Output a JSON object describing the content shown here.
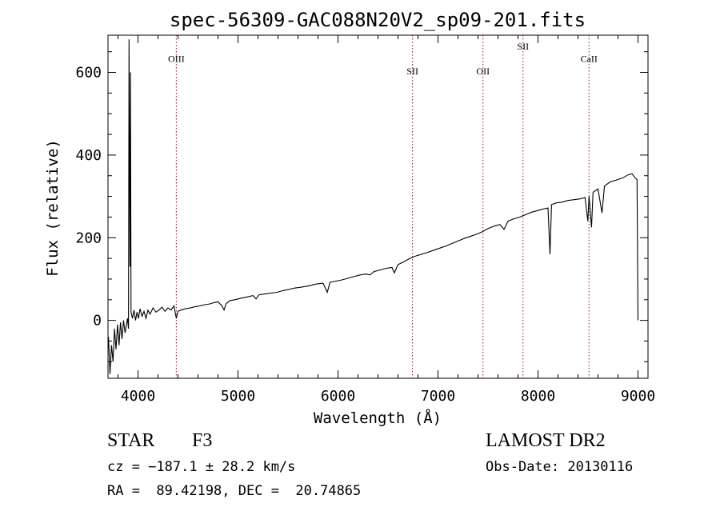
{
  "chart_data": {
    "type": "line",
    "title": "spec-56309-GAC088N20V2_sp09-201.fits",
    "xlabel": "Wavelength (Å)",
    "ylabel": "Flux (relative)",
    "xlim": [
      3700,
      9100
    ],
    "ylim": [
      -140,
      690
    ],
    "xticks": [
      4000,
      5000,
      6000,
      7000,
      8000,
      9000
    ],
    "yticks": [
      0,
      200,
      400,
      600
    ],
    "grid": false,
    "colors": {
      "spectrum": "#000000",
      "lines": "#8b1a1a",
      "axes": "#000000"
    },
    "lines": [
      {
        "name": "OIII",
        "x": 4383,
        "label_y": 625
      },
      {
        "name": "SII",
        "x": 6745,
        "label_y": 595
      },
      {
        "name": "OII",
        "x": 7450,
        "label_y": 595
      },
      {
        "name": "SII",
        "x": 7850,
        "label_y": 655
      },
      {
        "name": "CaII",
        "x": 8510,
        "label_y": 625
      }
    ],
    "spectrum": [
      [
        3705,
        -40
      ],
      [
        3720,
        -130
      ],
      [
        3735,
        -60
      ],
      [
        3750,
        -100
      ],
      [
        3765,
        -20
      ],
      [
        3780,
        -70
      ],
      [
        3795,
        -10
      ],
      [
        3810,
        -60
      ],
      [
        3825,
        -5
      ],
      [
        3840,
        -45
      ],
      [
        3855,
        0
      ],
      [
        3870,
        -30
      ],
      [
        3885,
        -10
      ],
      [
        3895,
        5
      ],
      [
        3905,
        -20
      ],
      [
        3910,
        680
      ],
      [
        3915,
        380
      ],
      [
        3920,
        130
      ],
      [
        3925,
        600
      ],
      [
        3930,
        20
      ],
      [
        3945,
        5
      ],
      [
        3960,
        25
      ],
      [
        3975,
        0
      ],
      [
        3990,
        20
      ],
      [
        4005,
        5
      ],
      [
        4020,
        28
      ],
      [
        4040,
        10
      ],
      [
        4060,
        22
      ],
      [
        4080,
        5
      ],
      [
        4100,
        25
      ],
      [
        4120,
        15
      ],
      [
        4150,
        30
      ],
      [
        4180,
        20
      ],
      [
        4210,
        25
      ],
      [
        4240,
        32
      ],
      [
        4270,
        22
      ],
      [
        4300,
        30
      ],
      [
        4330,
        25
      ],
      [
        4360,
        35
      ],
      [
        4383,
        5
      ],
      [
        4400,
        22
      ],
      [
        4430,
        25
      ],
      [
        4470,
        28
      ],
      [
        4520,
        30
      ],
      [
        4570,
        33
      ],
      [
        4620,
        35
      ],
      [
        4670,
        38
      ],
      [
        4720,
        40
      ],
      [
        4760,
        43
      ],
      [
        4800,
        45
      ],
      [
        4840,
        35
      ],
      [
        4861,
        25
      ],
      [
        4880,
        40
      ],
      [
        4920,
        48
      ],
      [
        4970,
        50
      ],
      [
        5020,
        53
      ],
      [
        5080,
        56
      ],
      [
        5150,
        60
      ],
      [
        5180,
        52
      ],
      [
        5210,
        62
      ],
      [
        5270,
        64
      ],
      [
        5330,
        66
      ],
      [
        5390,
        68
      ],
      [
        5450,
        72
      ],
      [
        5510,
        75
      ],
      [
        5560,
        78
      ],
      [
        5620,
        80
      ],
      [
        5670,
        82
      ],
      [
        5720,
        84
      ],
      [
        5780,
        88
      ],
      [
        5850,
        90
      ],
      [
        5893,
        68
      ],
      [
        5920,
        92
      ],
      [
        5980,
        95
      ],
      [
        6040,
        98
      ],
      [
        6100,
        102
      ],
      [
        6160,
        106
      ],
      [
        6220,
        110
      ],
      [
        6280,
        112
      ],
      [
        6320,
        110
      ],
      [
        6360,
        118
      ],
      [
        6420,
        122
      ],
      [
        6480,
        126
      ],
      [
        6540,
        128
      ],
      [
        6563,
        115
      ],
      [
        6600,
        135
      ],
      [
        6660,
        142
      ],
      [
        6720,
        150
      ],
      [
        6780,
        156
      ],
      [
        6840,
        160
      ],
      [
        6900,
        165
      ],
      [
        6960,
        170
      ],
      [
        7020,
        175
      ],
      [
        7080,
        180
      ],
      [
        7140,
        186
      ],
      [
        7200,
        192
      ],
      [
        7260,
        198
      ],
      [
        7320,
        203
      ],
      [
        7380,
        208
      ],
      [
        7440,
        214
      ],
      [
        7500,
        222
      ],
      [
        7560,
        228
      ],
      [
        7620,
        232
      ],
      [
        7660,
        220
      ],
      [
        7700,
        240
      ],
      [
        7760,
        246
      ],
      [
        7820,
        250
      ],
      [
        7880,
        256
      ],
      [
        7940,
        262
      ],
      [
        8000,
        266
      ],
      [
        8060,
        270
      ],
      [
        8100,
        272
      ],
      [
        8120,
        160
      ],
      [
        8135,
        280
      ],
      [
        8180,
        284
      ],
      [
        8240,
        286
      ],
      [
        8300,
        290
      ],
      [
        8360,
        292
      ],
      [
        8420,
        294
      ],
      [
        8470,
        297
      ],
      [
        8498,
        240
      ],
      [
        8510,
        300
      ],
      [
        8535,
        225
      ],
      [
        8550,
        310
      ],
      [
        8600,
        318
      ],
      [
        8640,
        260
      ],
      [
        8665,
        325
      ],
      [
        8720,
        335
      ],
      [
        8790,
        340
      ],
      [
        8850,
        345
      ],
      [
        8900,
        352
      ],
      [
        8940,
        355
      ],
      [
        8970,
        345
      ],
      [
        8990,
        340
      ],
      [
        9000,
        0
      ]
    ]
  },
  "footer": {
    "object": "STAR",
    "subclass": "F3",
    "velocity": "cz = −187.1 ± 28.2 km/s",
    "coords": "RA =  89.42198, DEC =  20.74865",
    "survey": "LAMOST DR2",
    "obs_date": "Obs-Date: 20130116"
  }
}
